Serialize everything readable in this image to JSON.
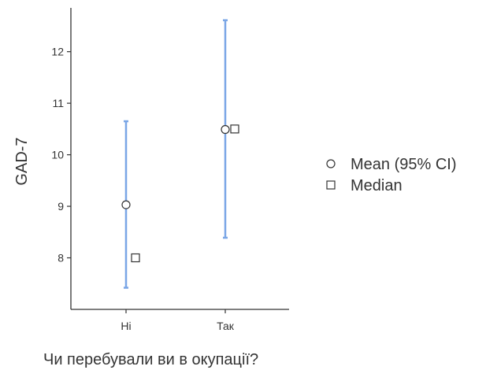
{
  "chart_data": {
    "type": "scatter",
    "xlabel": "Чи перебували ви в окупації?",
    "ylabel": "GAD-7",
    "categories": [
      "Ні",
      "Так"
    ],
    "ylim": [
      7.0,
      12.85
    ],
    "yticks": [
      8,
      9,
      10,
      11,
      12
    ],
    "series": [
      {
        "name": "Mean (95% CI)",
        "marker": "circle",
        "values": [
          9.03,
          10.49
        ],
        "ci_lower": [
          7.42,
          8.39
        ],
        "ci_upper": [
          10.65,
          12.61
        ]
      },
      {
        "name": "Median",
        "marker": "square",
        "values": [
          8.0,
          10.5
        ]
      }
    ],
    "legend": "right",
    "grid": false,
    "colors": {
      "error_bar": "#7aa6e6",
      "marker_fill": "#ffffff",
      "marker_stroke": "#333333",
      "axis": "#333333"
    }
  }
}
